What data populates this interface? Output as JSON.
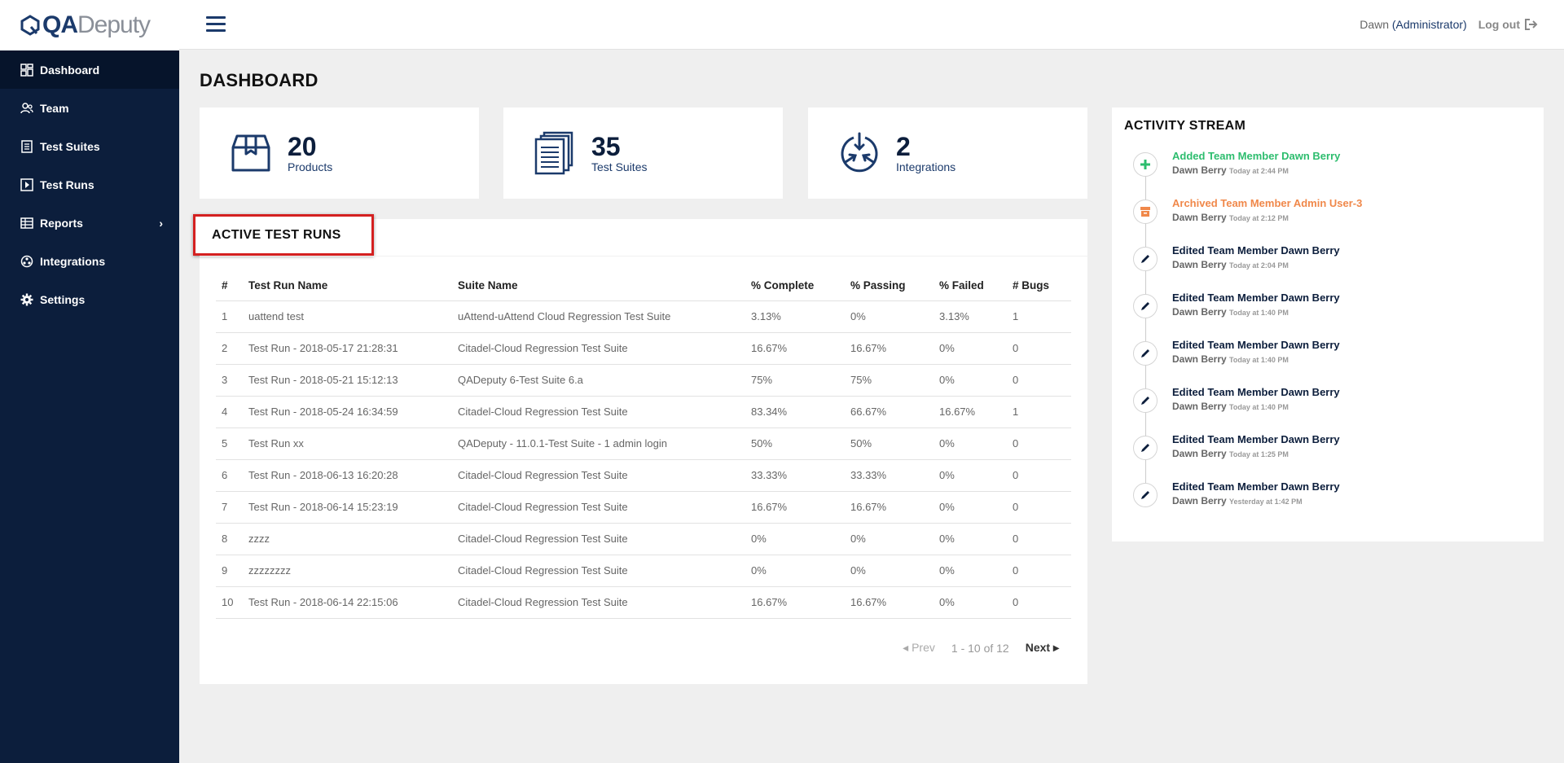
{
  "app": {
    "logo_bold": "QA",
    "logo_light": "Deputy"
  },
  "sidebar": {
    "items": [
      {
        "label": "Dashboard",
        "icon": "dashboard-icon",
        "active": true
      },
      {
        "label": "Team",
        "icon": "team-icon"
      },
      {
        "label": "Test Suites",
        "icon": "test-suites-icon"
      },
      {
        "label": "Test Runs",
        "icon": "test-runs-icon"
      },
      {
        "label": "Reports",
        "icon": "reports-icon",
        "has_submenu": true
      },
      {
        "label": "Integrations",
        "icon": "integrations-icon"
      },
      {
        "label": "Settings",
        "icon": "gear-icon"
      }
    ]
  },
  "header": {
    "user_name": "Dawn",
    "user_role": "(Administrator)",
    "logout_label": "Log out"
  },
  "page": {
    "title": "DASHBOARD"
  },
  "stats": [
    {
      "value": "20",
      "label": "Products",
      "icon": "products-box-icon"
    },
    {
      "value": "35",
      "label": "Test Suites",
      "icon": "test-suites-stack-icon"
    },
    {
      "value": "2",
      "label": "Integrations",
      "icon": "integrations-arrows-icon"
    }
  ],
  "active_runs": {
    "title": "ACTIVE TEST RUNS",
    "columns": [
      "#",
      "Test Run Name",
      "Suite Name",
      "% Complete",
      "% Passing",
      "% Failed",
      "# Bugs"
    ],
    "rows": [
      [
        "1",
        "uattend test",
        "uAttend-uAttend Cloud Regression Test Suite",
        "3.13%",
        "0%",
        "3.13%",
        "1"
      ],
      [
        "2",
        "Test Run - 2018-05-17 21:28:31",
        "Citadel-Cloud Regression Test Suite",
        "16.67%",
        "16.67%",
        "0%",
        "0"
      ],
      [
        "3",
        "Test Run - 2018-05-21 15:12:13",
        "QADeputy 6-Test Suite 6.a",
        "75%",
        "75%",
        "0%",
        "0"
      ],
      [
        "4",
        "Test Run - 2018-05-24 16:34:59",
        "Citadel-Cloud Regression Test Suite",
        "83.34%",
        "66.67%",
        "16.67%",
        "1"
      ],
      [
        "5",
        "Test Run xx",
        "QADeputy - 11.0.1-Test Suite - 1 admin login",
        "50%",
        "50%",
        "0%",
        "0"
      ],
      [
        "6",
        "Test Run - 2018-06-13 16:20:28",
        "Citadel-Cloud Regression Test Suite",
        "33.33%",
        "33.33%",
        "0%",
        "0"
      ],
      [
        "7",
        "Test Run - 2018-06-14 15:23:19",
        "Citadel-Cloud Regression Test Suite",
        "16.67%",
        "16.67%",
        "0%",
        "0"
      ],
      [
        "8",
        "zzzz",
        "Citadel-Cloud Regression Test Suite",
        "0%",
        "0%",
        "0%",
        "0"
      ],
      [
        "9",
        "zzzzzzzz",
        "Citadel-Cloud Regression Test Suite",
        "0%",
        "0%",
        "0%",
        "0"
      ],
      [
        "10",
        "Test Run - 2018-06-14 22:15:06",
        "Citadel-Cloud Regression Test Suite",
        "16.67%",
        "16.67%",
        "0%",
        "0"
      ]
    ],
    "pager": {
      "prev": "Prev",
      "range": "1 - 10 of 12",
      "next": "Next"
    }
  },
  "activity": {
    "title": "ACTIVITY STREAM",
    "items": [
      {
        "type": "added",
        "icon": "plus-icon",
        "text": "Added Team Member Dawn Berry",
        "user": "Dawn Berry",
        "time": "Today at 2:44 PM"
      },
      {
        "type": "archived",
        "icon": "archive-icon",
        "text": "Archived Team Member Admin User-3",
        "user": "Dawn Berry",
        "time": "Today at 2:12 PM"
      },
      {
        "type": "edited",
        "icon": "pencil-icon",
        "text": "Edited Team Member Dawn Berry",
        "user": "Dawn Berry",
        "time": "Today at 2:04 PM"
      },
      {
        "type": "edited",
        "icon": "pencil-icon",
        "text": "Edited Team Member Dawn Berry",
        "user": "Dawn Berry",
        "time": "Today at 1:40 PM"
      },
      {
        "type": "edited",
        "icon": "pencil-icon",
        "text": "Edited Team Member Dawn Berry",
        "user": "Dawn Berry",
        "time": "Today at 1:40 PM"
      },
      {
        "type": "edited",
        "icon": "pencil-icon",
        "text": "Edited Team Member Dawn Berry",
        "user": "Dawn Berry",
        "time": "Today at 1:40 PM"
      },
      {
        "type": "edited",
        "icon": "pencil-icon",
        "text": "Edited Team Member Dawn Berry",
        "user": "Dawn Berry",
        "time": "Today at 1:25 PM"
      },
      {
        "type": "edited",
        "icon": "pencil-icon",
        "text": "Edited Team Member Dawn Berry",
        "user": "Dawn Berry",
        "time": "Yesterday at 1:42 PM"
      }
    ]
  },
  "colors": {
    "navy": "#0c1e3c",
    "added": "#2dbd6e",
    "archived": "#f0884a",
    "highlight": "#d42020"
  }
}
